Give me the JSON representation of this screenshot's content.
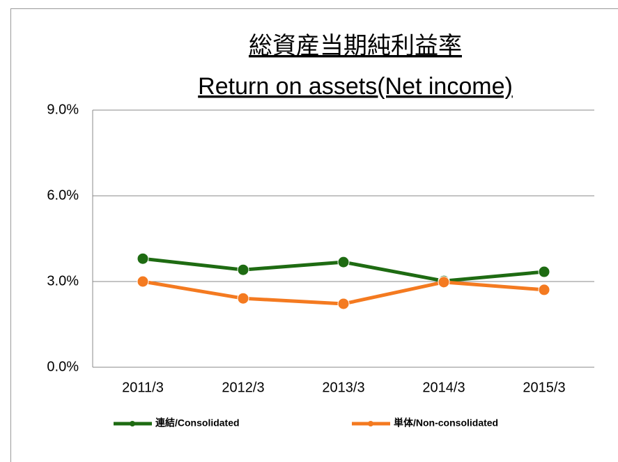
{
  "chart_data": {
    "type": "line",
    "title": "総資産当期純利益率",
    "subtitle": "Return on assets(Net income)",
    "categories": [
      "2011/3",
      "2012/3",
      "2013/3",
      "2014/3",
      "2015/3"
    ],
    "series": [
      {
        "name": "連結/Consolidated",
        "color": "#1e6b12",
        "values": [
          3.8,
          3.41,
          3.68,
          3.02,
          3.34
        ]
      },
      {
        "name": "単体/Non-consolidated",
        "color": "#f47a20",
        "values": [
          3.0,
          2.41,
          2.22,
          2.98,
          2.71
        ]
      }
    ],
    "ylim": [
      0,
      9
    ],
    "yticks": [
      {
        "value": 0,
        "label": "0.0%"
      },
      {
        "value": 3,
        "label": "3.0%"
      },
      {
        "value": 6,
        "label": "6.0%"
      },
      {
        "value": 9,
        "label": "9.0%"
      }
    ],
    "grid": true,
    "legend": "bottom"
  }
}
